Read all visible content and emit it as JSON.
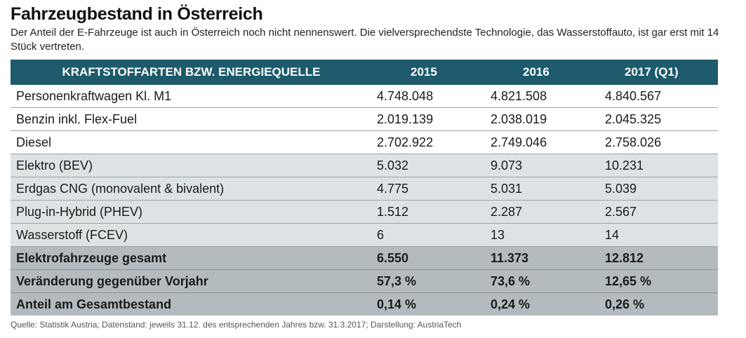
{
  "title": "Fahrzeugbestand in Österreich",
  "subtitle": "Der Anteil der E-Fahrzeuge ist auch in Österreich noch nicht nennenswert. Die vielversprechendste Technologie, das Wasserstoffauto, ist gar erst mit 14 Stück vertreten.",
  "table": {
    "headers": [
      "KRAFTSTOFFARTEN BZW. ENERGIEQUELLE",
      "2015",
      "2016",
      "2017 (Q1)"
    ],
    "rows": [
      {
        "label": "Personenkraftwagen Kl. M1",
        "values": [
          "4.748.048",
          "4.821.508",
          "4.840.567"
        ]
      },
      {
        "label": "Benzin inkl. Flex-Fuel",
        "values": [
          "2.019.139",
          "2.038.019",
          "2.045.325"
        ]
      },
      {
        "label": "Diesel",
        "values": [
          "2.702.922",
          "2.749.046",
          "2.758.026"
        ]
      },
      {
        "label": "Elektro (BEV)",
        "values": [
          "5.032",
          "9.073",
          "10.231"
        ]
      },
      {
        "label": "Erdgas CNG (monovalent & bivalent)",
        "values": [
          "4.775",
          "5.031",
          "5.039"
        ]
      },
      {
        "label": "Plug-in-Hybrid (PHEV)",
        "values": [
          "1.512",
          "2.287",
          "2.567"
        ]
      },
      {
        "label": "Wasserstoff (FCEV)",
        "values": [
          "6",
          "13",
          "14"
        ]
      },
      {
        "label": "Elektrofahrzeuge gesamt",
        "values": [
          "6.550",
          "11.373",
          "12.812"
        ]
      },
      {
        "label": "Veränderung gegenüber Vorjahr",
        "values": [
          "57,3 %",
          "73,6 %",
          "12,65 %"
        ]
      },
      {
        "label": "Anteil am Gesamtbestand",
        "values": [
          "0,14 %",
          "0,24 %",
          "0,26 %"
        ]
      }
    ]
  },
  "source": "Quelle: Statistik Austria; Datenstand: jeweils 31.12. des entsprechenden Jahres bzw. 31.3.2017; Darstellung: AustriaTech",
  "colors": {
    "header_bg": "#1c5a6c",
    "row_white": "#ffffff",
    "row_light": "#dde3e5",
    "row_dark": "#b3bbbf"
  }
}
